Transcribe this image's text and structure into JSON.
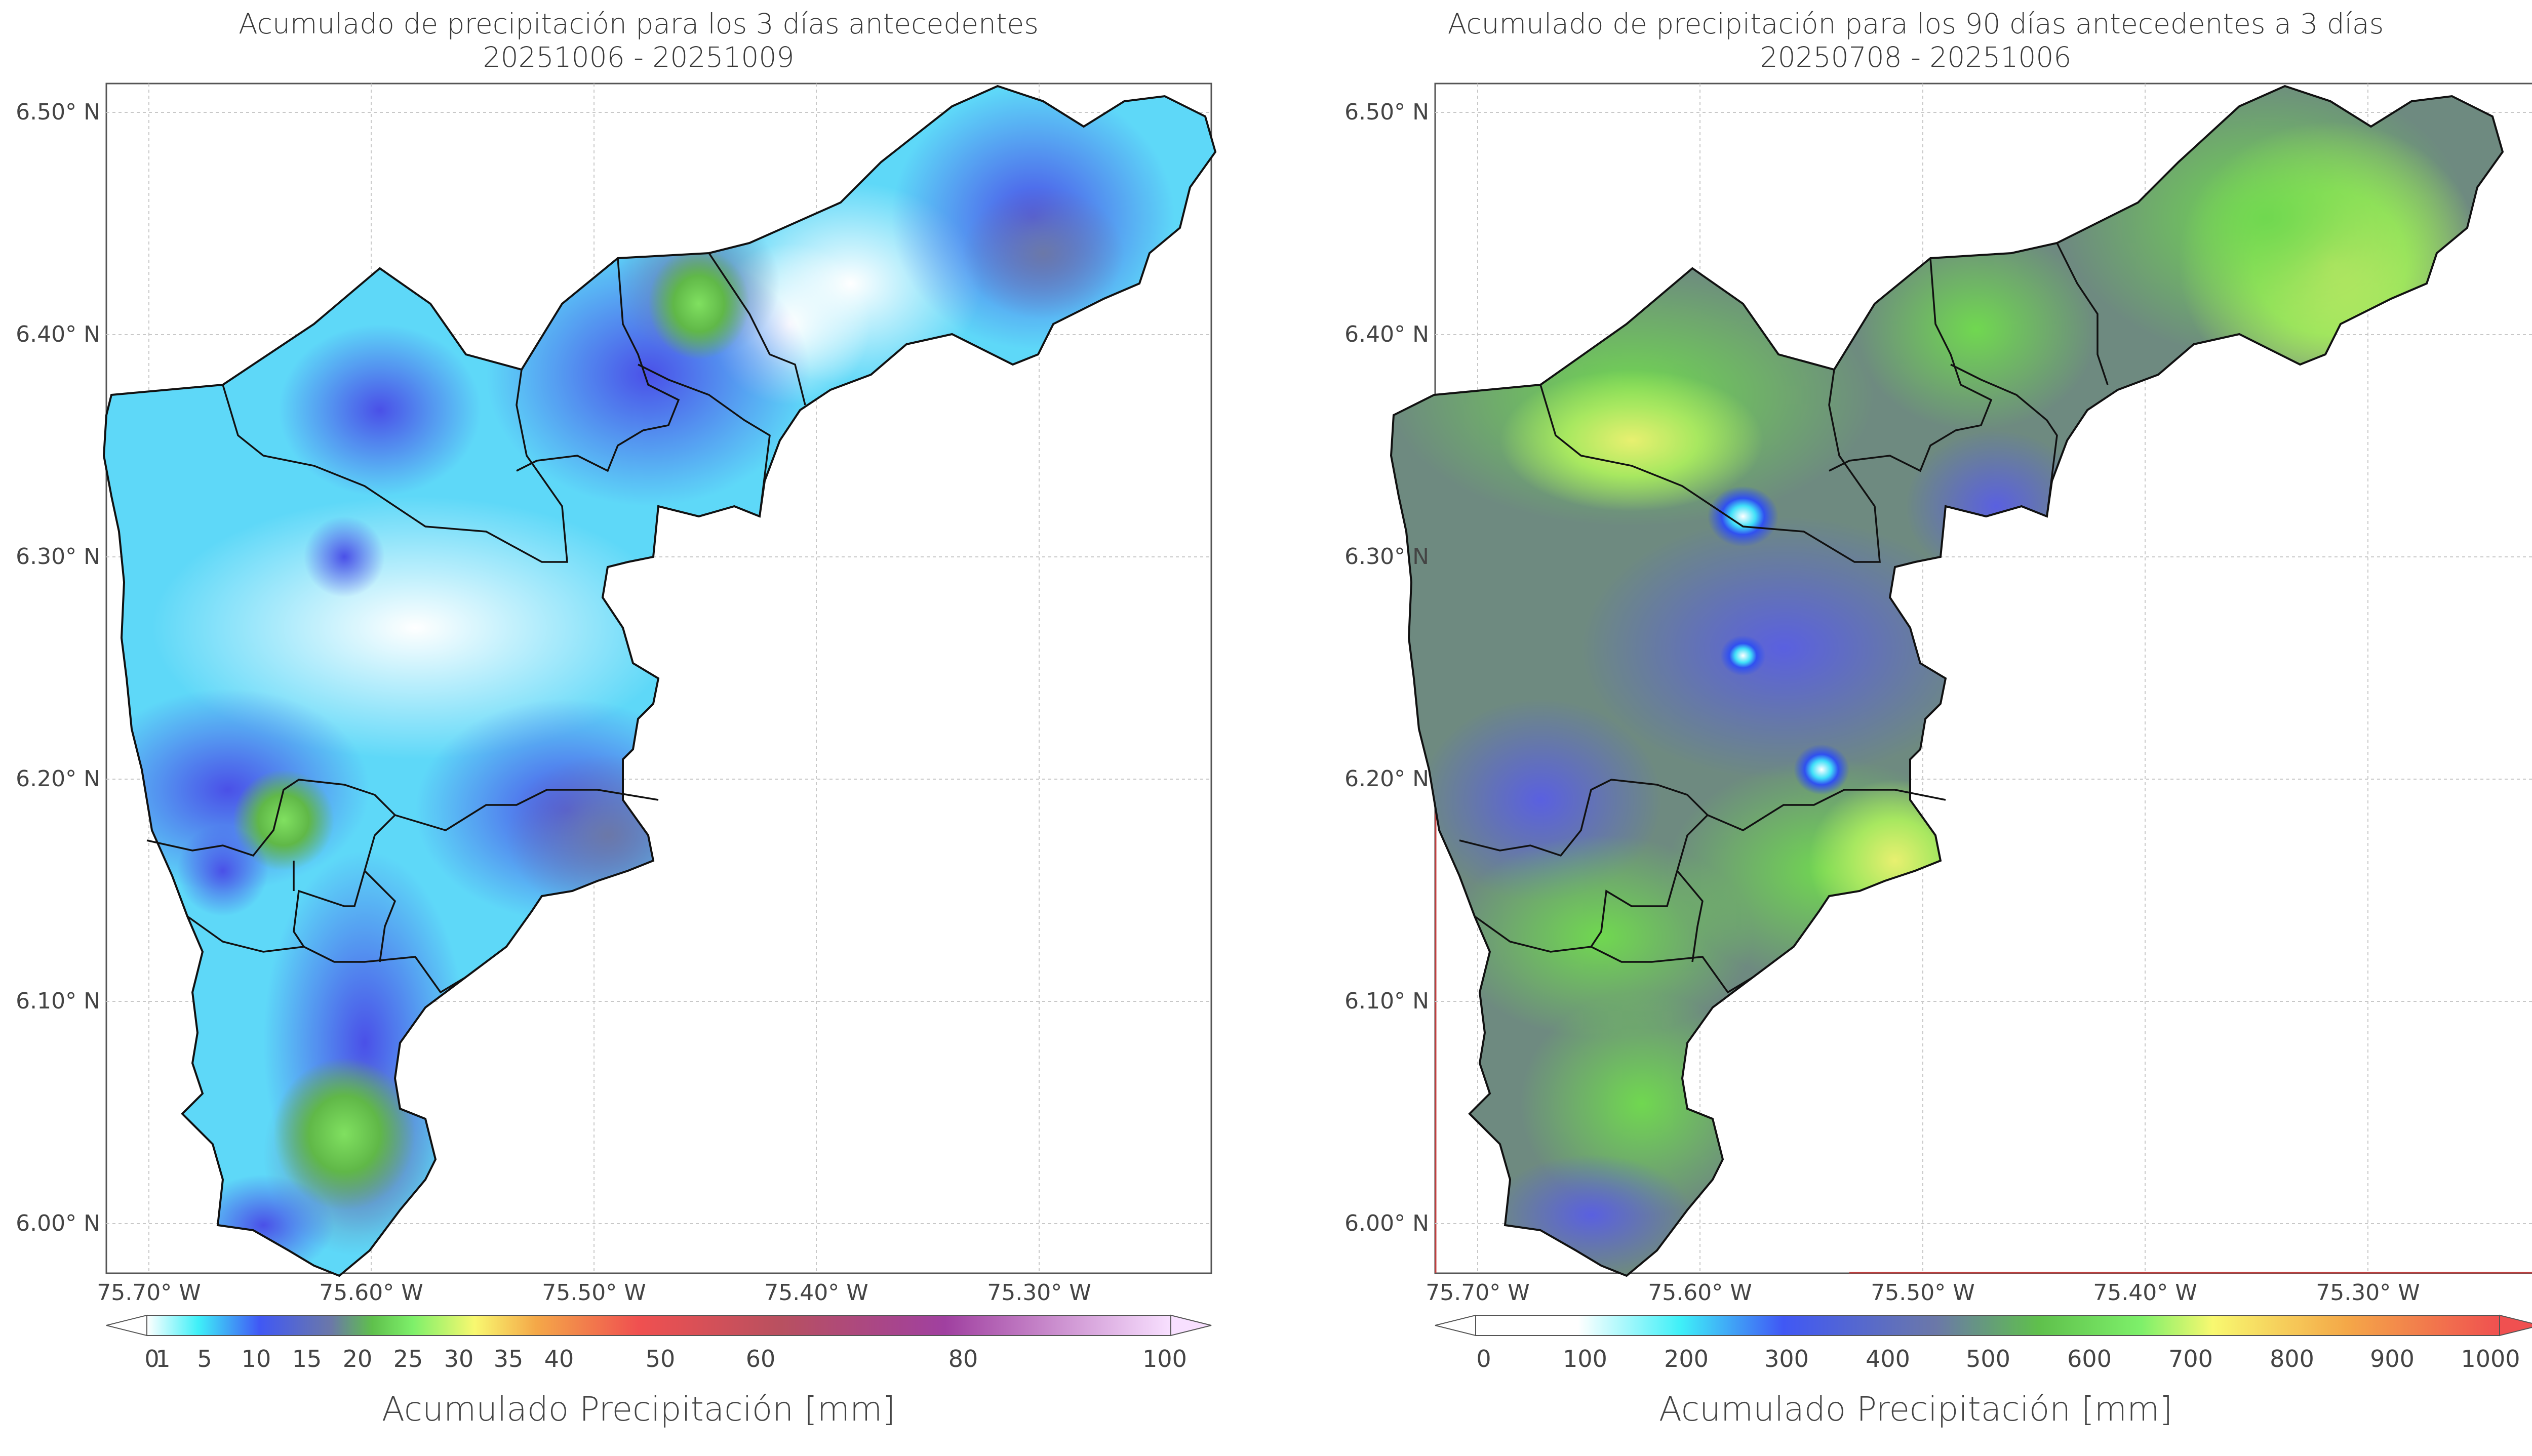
{
  "left": {
    "title_line1": "Acumulado de precipitación para los 3 días antecedentes",
    "title_line2": "20251006 - 20251009",
    "lat_ticks": [
      "6.50° N",
      "6.40° N",
      "6.30° N",
      "6.20° N",
      "6.10° N",
      "6.00° N"
    ],
    "lon_ticks": [
      "75.70° W",
      "75.60° W",
      "75.50° W",
      "75.40° W",
      "75.30° W"
    ],
    "colorbar_ticks": [
      "0",
      "1",
      "5",
      "10",
      "15",
      "20",
      "25",
      "30",
      "35",
      "40",
      "50",
      "60",
      "80",
      "100"
    ],
    "colorbar_label": "Acumulado Precipitación [mm]"
  },
  "right": {
    "title_line1": "Acumulado de precipitación para los 90 días antecedentes a 3 días",
    "title_line2": "20250708 - 20251006",
    "lat_ticks": [
      "6.50° N",
      "6.40° N",
      "6.30° N",
      "6.20° N",
      "6.10° N",
      "6.00° N"
    ],
    "lon_ticks": [
      "75.70° W",
      "75.60° W",
      "75.50° W",
      "75.40° W",
      "75.30° W"
    ],
    "colorbar_ticks": [
      "0",
      "100",
      "200",
      "300",
      "400",
      "500",
      "600",
      "700",
      "800",
      "900",
      "1000"
    ],
    "colorbar_label": "Acumulado Precipitación [mm]"
  },
  "colors": {
    "left_gradient": [
      "#ffffff",
      "#3ff0f8",
      "#4058f5",
      "#6b78a8",
      "#5fc04c",
      "#7ef06a",
      "#f8f870",
      "#f4a848",
      "#f05050",
      "#c04048",
      "#a04090",
      "#e8c8f0",
      "#f8e0ff"
    ],
    "right_gradient": [
      "#ffffff",
      "#3ff0f8",
      "#4058f5",
      "#6b78a8",
      "#5fc04c",
      "#7ef06a",
      "#f8f870",
      "#f4a848",
      "#f05050"
    ]
  }
}
